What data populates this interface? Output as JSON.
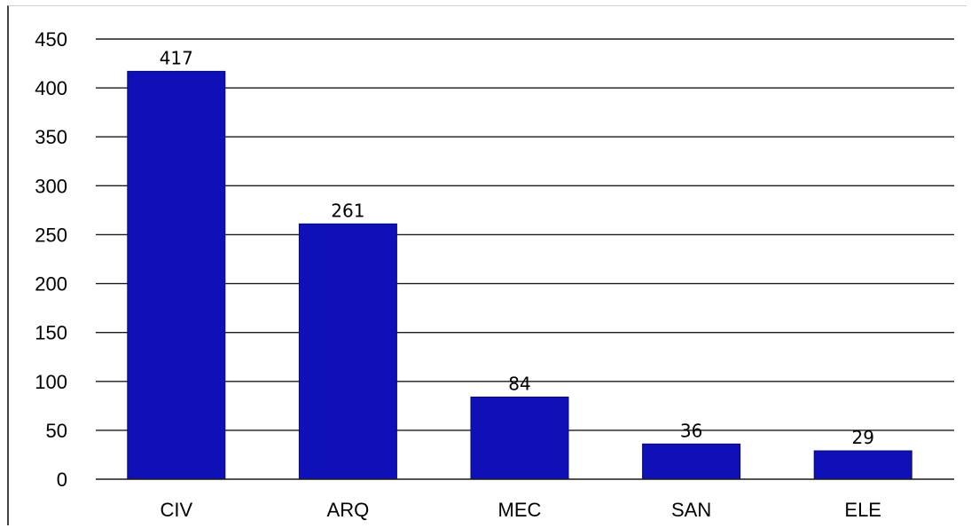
{
  "chart_data": {
    "type": "bar",
    "categories": [
      "CIV",
      "ARQ",
      "MEC",
      "SAN",
      "ELE"
    ],
    "values": [
      417,
      261,
      84,
      36,
      29
    ],
    "data_labels": [
      "417",
      "261",
      "84",
      "36",
      "29"
    ],
    "title": "",
    "xlabel": "",
    "ylabel": "",
    "ylim": [
      0,
      450
    ],
    "yticks": [
      0,
      50,
      100,
      150,
      200,
      250,
      300,
      350,
      400,
      450
    ],
    "grid": true,
    "legend": "none",
    "bar_color": "#1010B8",
    "bar_edge_color": "#080870"
  }
}
